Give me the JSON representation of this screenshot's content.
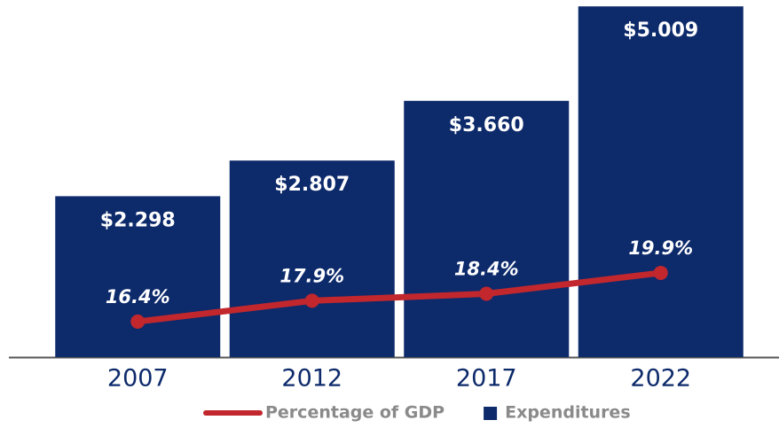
{
  "chart_data": {
    "type": "bar",
    "categories": [
      "2007",
      "2012",
      "2017",
      "2022"
    ],
    "series": [
      {
        "name": "Percentage of GDP",
        "type": "line",
        "axis": "y2",
        "color": "#c1272d",
        "values": [
          16.4,
          17.9,
          18.4,
          19.9
        ],
        "value_labels": [
          "16.4%",
          "17.9%",
          "18.4%",
          "19.9%"
        ]
      },
      {
        "name": "Expenditures",
        "type": "bar",
        "color": "#0d2a6b",
        "values": [
          2.298,
          2.807,
          3.66,
          5.009
        ],
        "value_labels": [
          "$2.298",
          "$2.807",
          "$3.660",
          "$5.009"
        ]
      }
    ],
    "ylim": [
      0,
      5.1
    ],
    "y2lim": [
      13.85,
      39.5
    ]
  }
}
